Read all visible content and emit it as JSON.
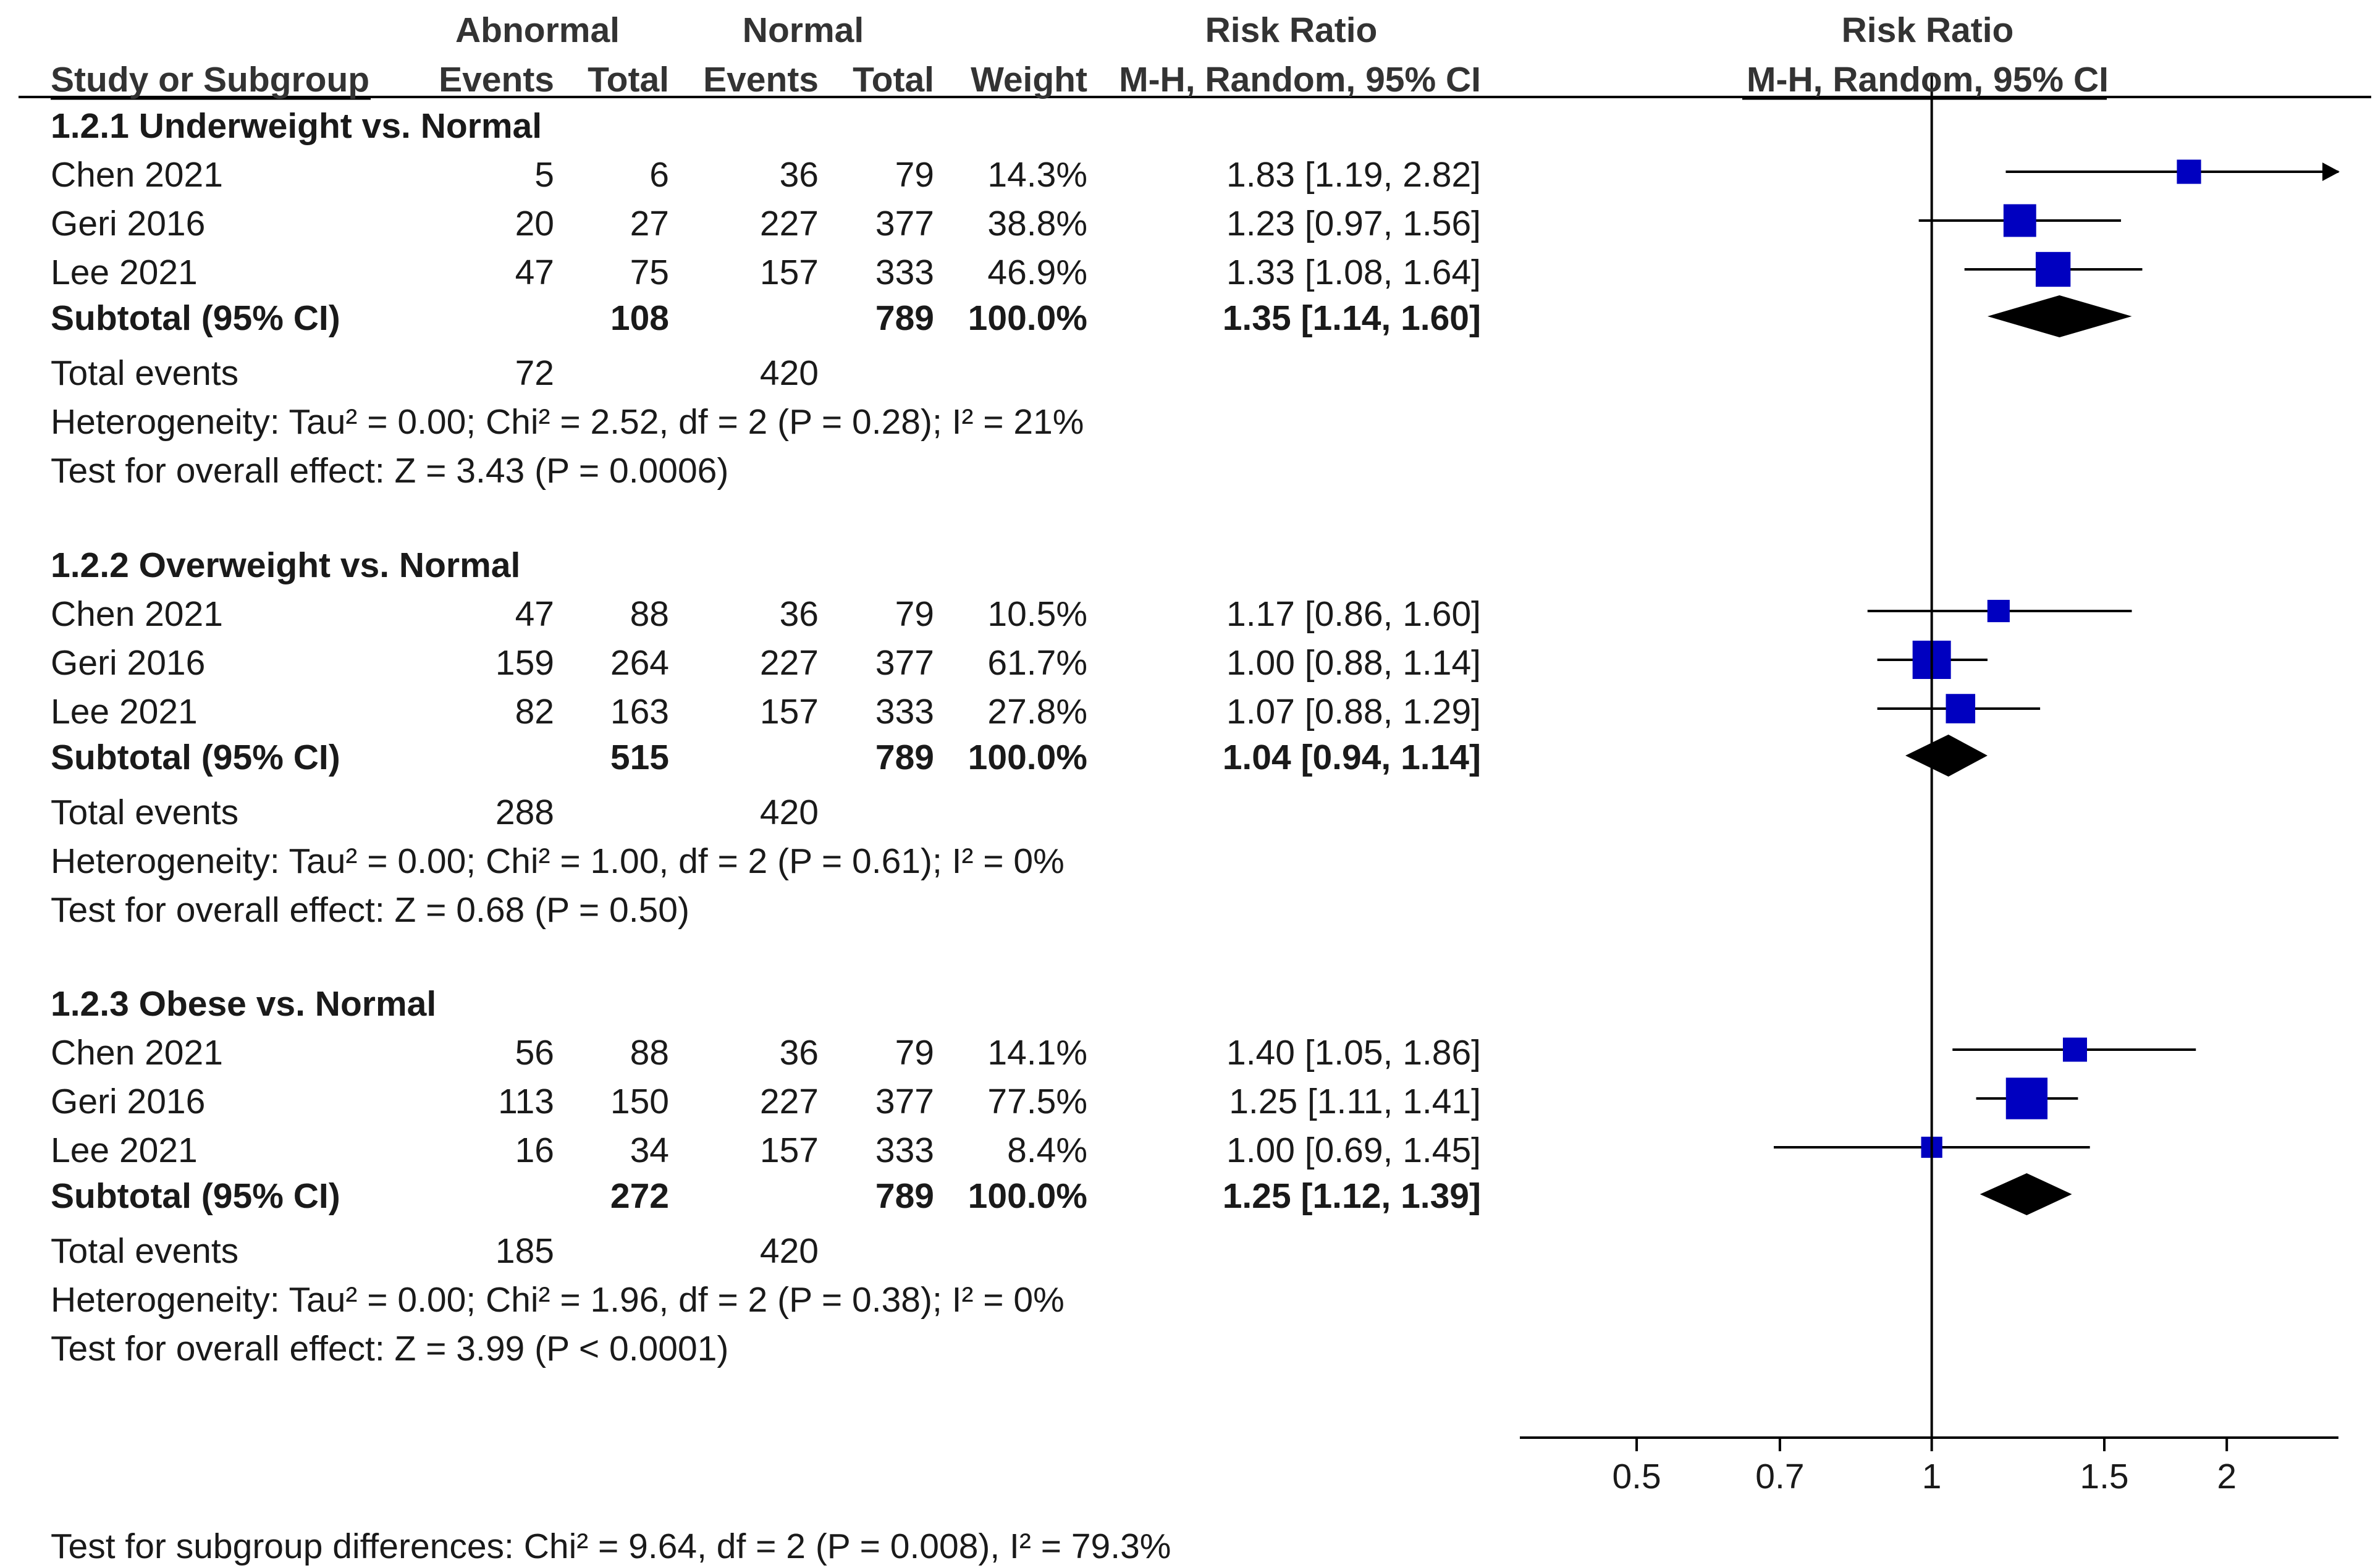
{
  "chart_data": {
    "type": "forest",
    "title": "",
    "header": {
      "abnormal": "Abnormal",
      "normal": "Normal",
      "risk_ratio": "Risk Ratio",
      "risk_ratio_plot": "Risk Ratio",
      "study": "Study or Subgroup",
      "events_abn": "Events",
      "total_abn": "Total",
      "events_norm": "Events",
      "total_norm": "Total",
      "weight": "Weight",
      "method": "M-H, Random, 95% CI",
      "method_plot": "M-H, Random, 95% CI"
    },
    "xaxis": {
      "scale": "log",
      "range": [
        0.38,
        2.6
      ],
      "ticks": [
        0.5,
        0.7,
        1,
        1.5,
        2
      ],
      "tick_labels": [
        "0.5",
        "0.7",
        "1",
        "1.5",
        "2"
      ],
      "null_line": 1
    },
    "subgroups": [
      {
        "title": "1.2.1 Underweight vs. Normal",
        "studies": [
          {
            "name": "Chen 2021",
            "e_abn": "5",
            "t_abn": "6",
            "e_norm": "36",
            "t_norm": "79",
            "weight": "14.3%",
            "ci_text": "1.83 [1.19, 2.82]",
            "rr": 1.83,
            "lo": 1.19,
            "hi": 2.82,
            "w": 14.3
          },
          {
            "name": "Geri 2016",
            "e_abn": "20",
            "t_abn": "27",
            "e_norm": "227",
            "t_norm": "377",
            "weight": "38.8%",
            "ci_text": "1.23 [0.97, 1.56]",
            "rr": 1.23,
            "lo": 0.97,
            "hi": 1.56,
            "w": 38.8
          },
          {
            "name": "Lee 2021",
            "e_abn": "47",
            "t_abn": "75",
            "e_norm": "157",
            "t_norm": "333",
            "weight": "46.9%",
            "ci_text": "1.33 [1.08, 1.64]",
            "rr": 1.33,
            "lo": 1.08,
            "hi": 1.64,
            "w": 46.9
          }
        ],
        "subtotal": {
          "label": "Subtotal (95% CI)",
          "t_abn": "108",
          "t_norm": "789",
          "weight": "100.0%",
          "ci_text": "1.35 [1.14, 1.60]",
          "rr": 1.35,
          "lo": 1.14,
          "hi": 1.6
        },
        "total_events": {
          "label": "Total events",
          "abn": "72",
          "norm": "420"
        },
        "heterogeneity": "Heterogeneity: Tau² = 0.00; Chi² = 2.52, df = 2 (P = 0.28); I² = 21%",
        "overall": "Test for overall effect: Z = 3.43 (P = 0.0006)"
      },
      {
        "title": "1.2.2 Overweight vs. Normal",
        "studies": [
          {
            "name": "Chen 2021",
            "e_abn": "47",
            "t_abn": "88",
            "e_norm": "36",
            "t_norm": "79",
            "weight": "10.5%",
            "ci_text": "1.17 [0.86, 1.60]",
            "rr": 1.17,
            "lo": 0.86,
            "hi": 1.6,
            "w": 10.5
          },
          {
            "name": "Geri 2016",
            "e_abn": "159",
            "t_abn": "264",
            "e_norm": "227",
            "t_norm": "377",
            "weight": "61.7%",
            "ci_text": "1.00 [0.88, 1.14]",
            "rr": 1.0,
            "lo": 0.88,
            "hi": 1.14,
            "w": 61.7
          },
          {
            "name": "Lee 2021",
            "e_abn": "82",
            "t_abn": "163",
            "e_norm": "157",
            "t_norm": "333",
            "weight": "27.8%",
            "ci_text": "1.07 [0.88, 1.29]",
            "rr": 1.07,
            "lo": 0.88,
            "hi": 1.29,
            "w": 27.8
          }
        ],
        "subtotal": {
          "label": "Subtotal (95% CI)",
          "t_abn": "515",
          "t_norm": "789",
          "weight": "100.0%",
          "ci_text": "1.04 [0.94, 1.14]",
          "rr": 1.04,
          "lo": 0.94,
          "hi": 1.14
        },
        "total_events": {
          "label": "Total events",
          "abn": "288",
          "norm": "420"
        },
        "heterogeneity": "Heterogeneity: Tau² = 0.00; Chi² = 1.00, df = 2 (P = 0.61); I² = 0%",
        "overall": "Test for overall effect: Z = 0.68 (P = 0.50)"
      },
      {
        "title": "1.2.3 Obese vs. Normal",
        "studies": [
          {
            "name": "Chen 2021",
            "e_abn": "56",
            "t_abn": "88",
            "e_norm": "36",
            "t_norm": "79",
            "weight": "14.1%",
            "ci_text": "1.40 [1.05, 1.86]",
            "rr": 1.4,
            "lo": 1.05,
            "hi": 1.86,
            "w": 14.1
          },
          {
            "name": "Geri 2016",
            "e_abn": "113",
            "t_abn": "150",
            "e_norm": "227",
            "t_norm": "377",
            "weight": "77.5%",
            "ci_text": "1.25 [1.11, 1.41]",
            "rr": 1.25,
            "lo": 1.11,
            "hi": 1.41,
            "w": 77.5
          },
          {
            "name": "Lee 2021",
            "e_abn": "16",
            "t_abn": "34",
            "e_norm": "157",
            "t_norm": "333",
            "weight": "8.4%",
            "ci_text": "1.00 [0.69, 1.45]",
            "rr": 1.0,
            "lo": 0.69,
            "hi": 1.45,
            "w": 8.4
          }
        ],
        "subtotal": {
          "label": "Subtotal (95% CI)",
          "t_abn": "272",
          "t_norm": "789",
          "weight": "100.0%",
          "ci_text": "1.25 [1.12, 1.39]",
          "rr": 1.25,
          "lo": 1.12,
          "hi": 1.39
        },
        "total_events": {
          "label": "Total events",
          "abn": "185",
          "norm": "420"
        },
        "heterogeneity": "Heterogeneity: Tau² = 0.00; Chi² = 1.96, df = 2 (P = 0.38); I² = 0%",
        "overall": "Test for overall effect: Z = 3.99 (P < 0.0001)"
      }
    ],
    "subgroup_differences": "Test for subgroup differences: Chi² = 9.64, df = 2 (P = 0.008), I² = 79.3%",
    "colors": {
      "square": "#0000c0",
      "diamond": "#000000",
      "line": "#000000",
      "text": "#1a1a1a"
    }
  }
}
